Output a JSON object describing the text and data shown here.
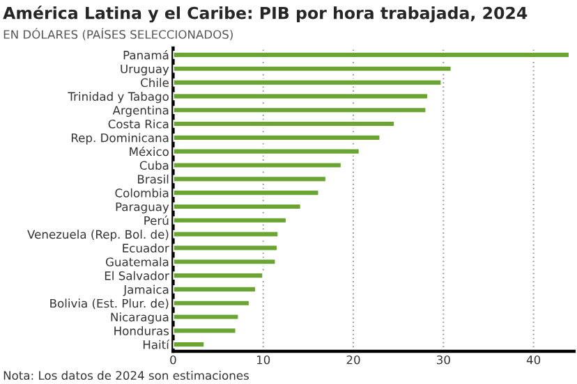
{
  "chart_data": {
    "type": "bar",
    "orientation": "horizontal",
    "title": "América Latina y el Caribe: PIB por hora trabajada, 2024",
    "subtitle": "EN DÓLARES (PAÍSES SELECCIONADOS)",
    "categories": [
      "Panamá",
      "Uruguay",
      "Chile",
      "Trinidad y Tabago",
      "Argentina",
      "Costa Rica",
      "Rep. Dominicana",
      "México",
      "Cuba",
      "Brasil",
      "Colombia",
      "Paraguay",
      "Perú",
      "Venezuela (Rep. Bol. de)",
      "Ecuador",
      "Guatemala",
      "El Salvador",
      "Jamaica",
      "Bolivia (Est. Plur. de)",
      "Nicaragua",
      "Honduras",
      "Haití"
    ],
    "values": [
      44,
      30.9,
      29.8,
      28.3,
      28.1,
      24.6,
      23.0,
      20.7,
      18.7,
      17.0,
      16.2,
      14.2,
      12.6,
      11.7,
      11.6,
      11.4,
      10.0,
      9.2,
      8.5,
      7.3,
      7.0,
      3.5
    ],
    "color": "#6aa534",
    "xlim": [
      0,
      44.5
    ],
    "xticks": [
      0,
      10,
      20,
      30,
      40
    ],
    "grid": "x",
    "legend": false,
    "annotations": [
      "Nota: Los datos de 2024 son estimaciones"
    ]
  }
}
